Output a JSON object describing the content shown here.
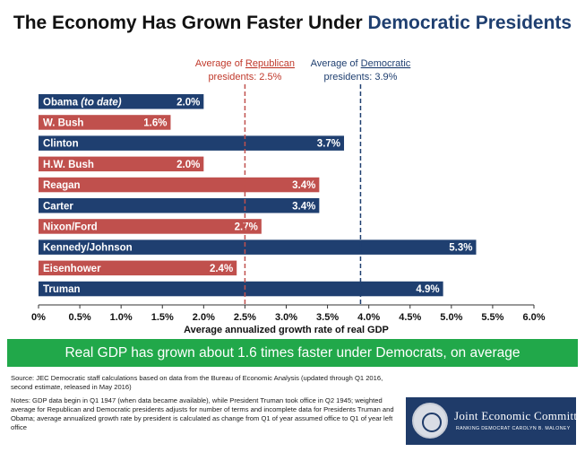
{
  "title": {
    "part1": "The Economy Has Grown Faster Under ",
    "part2": "Democratic Presidents"
  },
  "colors": {
    "democrat": "#1f3f70",
    "republican": "#c0504d",
    "banner": "#21a84a",
    "republican_text": "#c0392b",
    "democrat_text": "#1f3f70"
  },
  "chart_data": {
    "type": "bar",
    "orientation": "horizontal",
    "xlabel": "Average annualized growth rate of real GDP",
    "xlim": [
      0,
      6
    ],
    "xticks": [
      "0%",
      "0.5%",
      "1.0%",
      "1.5%",
      "2.0%",
      "2.5%",
      "3.0%",
      "3.5%",
      "4.0%",
      "4.5%",
      "5.0%",
      "5.5%",
      "6.0%"
    ],
    "grid": false,
    "bars": [
      {
        "label": "Obama (to date)",
        "label_plain": "Obama ",
        "label_italic": "(to date)",
        "value": 2.0,
        "value_label": "2.0%",
        "party": "democrat"
      },
      {
        "label": "W. Bush",
        "value": 1.6,
        "value_label": "1.6%",
        "party": "republican"
      },
      {
        "label": "Clinton",
        "value": 3.7,
        "value_label": "3.7%",
        "party": "democrat"
      },
      {
        "label": "H.W. Bush",
        "value": 2.0,
        "value_label": "2.0%",
        "party": "republican"
      },
      {
        "label": "Reagan",
        "value": 3.4,
        "value_label": "3.4%",
        "party": "republican"
      },
      {
        "label": "Carter",
        "value": 3.4,
        "value_label": "3.4%",
        "party": "democrat"
      },
      {
        "label": "Nixon/Ford",
        "value": 2.7,
        "value_label": "2.7%",
        "party": "republican"
      },
      {
        "label": "Kennedy/Johnson",
        "value": 5.3,
        "value_label": "5.3%",
        "party": "democrat"
      },
      {
        "label": "Eisenhower",
        "value": 2.4,
        "value_label": "2.4%",
        "party": "republican"
      },
      {
        "label": "Truman",
        "value": 4.9,
        "value_label": "4.9%",
        "party": "democrat"
      }
    ],
    "reference_lines": [
      {
        "value": 2.5,
        "party": "republican",
        "line1_prefix": "Average of ",
        "line1_key": "Republican",
        "line2": "presidents: 2.5%"
      },
      {
        "value": 3.9,
        "party": "democrat",
        "line1_prefix": "Average of ",
        "line1_key": "Democratic",
        "line2": "presidents: 3.9%"
      }
    ]
  },
  "banner": "Real GDP has grown about 1.6 times faster under Democrats, on average",
  "source": "Source: JEC Democratic staff calculations based on data from the Bureau of Economic Analysis (updated through Q1 2016, second estimate, released in May 2016)",
  "notes": "Notes: GDP data begin in Q1 1947 (when data became available), while President Truman took office in Q2 1945; weighted average for Republican and Democratic presidents adjusts for number of terms and incomplete data for Presidents Truman and Obama; average annualized growth rate by president is calculated as change from Q1 of year assumed office to Q1 of year left office",
  "logo": {
    "name": "Joint Economic Committee",
    "subtitle": "RANKING DEMOCRAT CAROLYN B. MALONEY"
  }
}
